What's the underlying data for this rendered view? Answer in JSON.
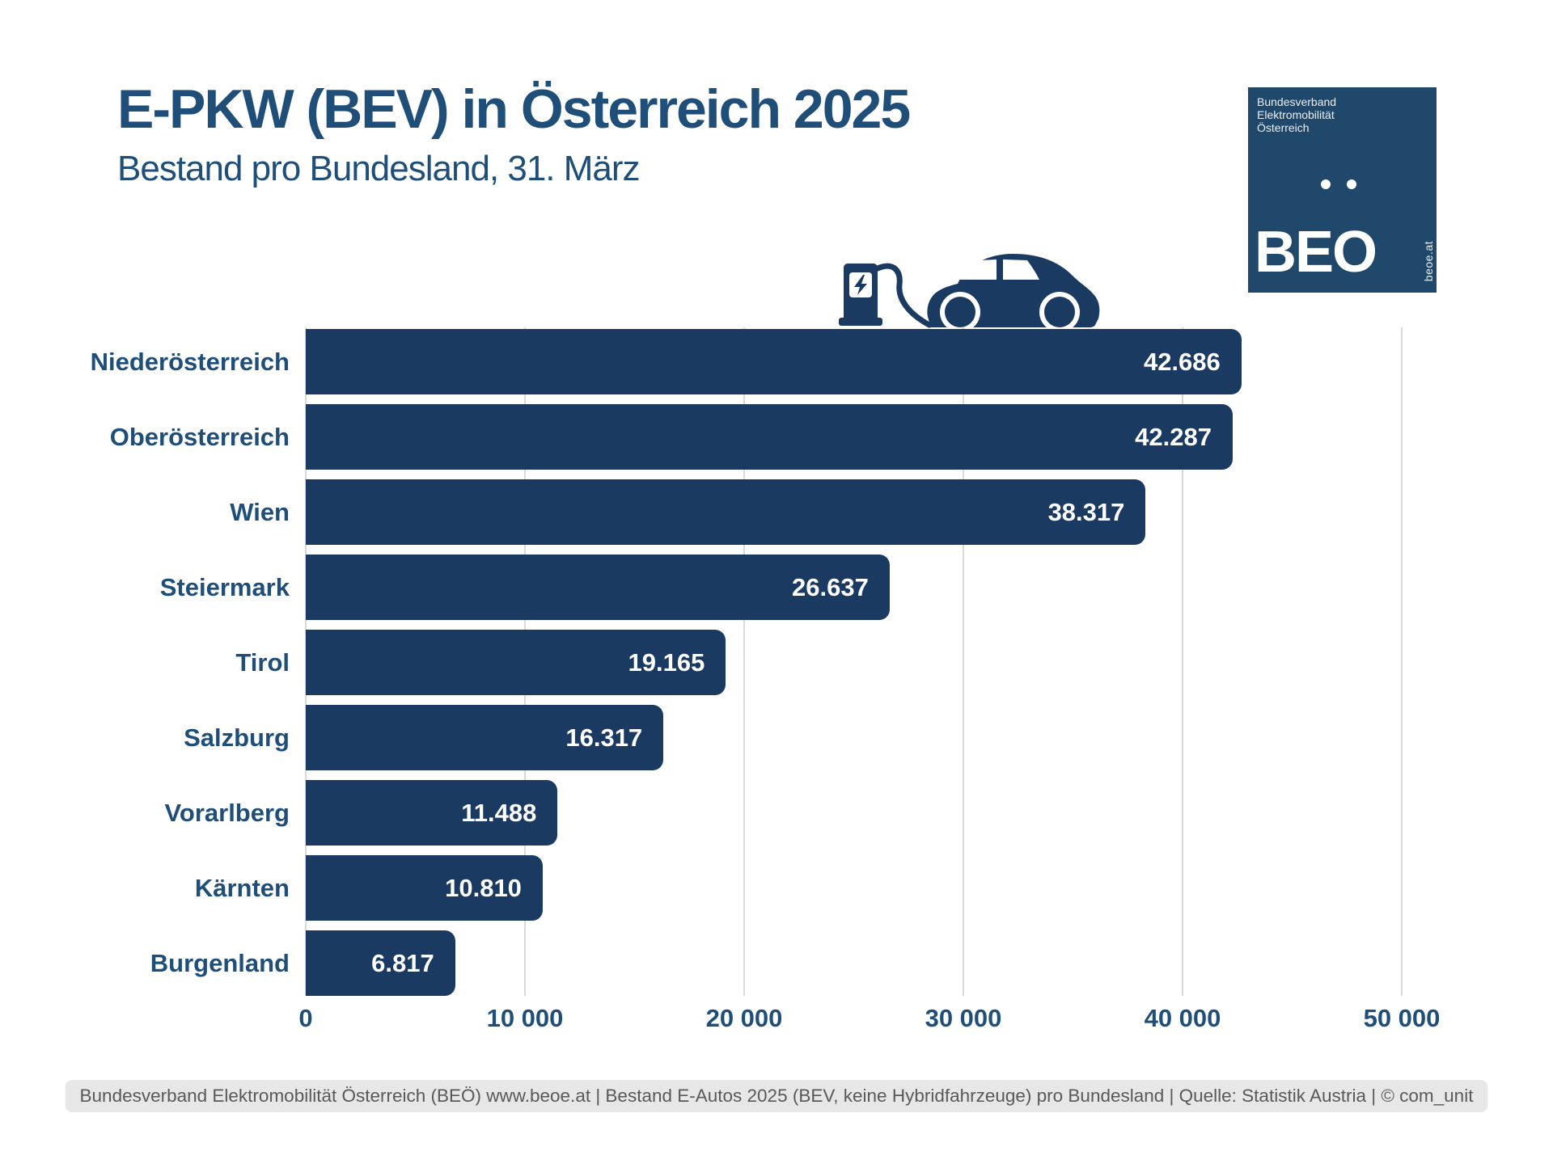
{
  "header": {
    "title": "E-PKW (BEV) in Österreich 2025",
    "subtitle": "Bestand pro Bundesland, 31. März"
  },
  "logo": {
    "org_lines": [
      "Bundesverband",
      "Elektromobilität",
      "Österreich"
    ],
    "acronym": "BEO",
    "website_vertical": "beoe.at",
    "bg_color": "#20486A"
  },
  "chart_data": {
    "type": "bar",
    "orientation": "horizontal",
    "categories": [
      "Niederösterreich",
      "Oberösterreich",
      "Wien",
      "Steiermark",
      "Tirol",
      "Salzburg",
      "Vorarlberg",
      "Kärnten",
      "Burgenland"
    ],
    "values": [
      42686,
      42287,
      38317,
      26637,
      19165,
      16317,
      11488,
      10810,
      6817
    ],
    "value_labels": [
      "42.686",
      "42.287",
      "38.317",
      "26.637",
      "19.165",
      "16.317",
      "11.488",
      "10.810",
      "6.817"
    ],
    "x_ticks": [
      0,
      10000,
      20000,
      30000,
      40000,
      50000
    ],
    "x_tick_labels": [
      "0",
      "10 000",
      "20 000",
      "30 000",
      "40 000",
      "50 000"
    ],
    "xlim": [
      0,
      50000
    ],
    "grid": true,
    "legend": false,
    "bar_color": "#1B3A61",
    "gridline_color": "#D9D9D9",
    "label_color": "#1F4E79",
    "value_label_color": "#FFFFFF"
  },
  "icons": {
    "charging_station": "ev-charging-station-icon",
    "car": "electric-car-icon",
    "color": "#1B3A61"
  },
  "footer": {
    "text": "Bundesverband Elektromobilität Österreich (BEÖ) www.beoe.at | Bestand E-Autos 2025 (BEV, keine Hybridfahrzeuge) pro Bundesland | Quelle: Statistik Austria | © com_unit"
  },
  "colors": {
    "title": "#1F4E79",
    "bar": "#1B3A61",
    "logo_bg": "#20486A",
    "gridline": "#D9D9D9",
    "footer_bg": "#E8E7E7",
    "footer_text": "#595959",
    "background": "#FFFFFF"
  }
}
